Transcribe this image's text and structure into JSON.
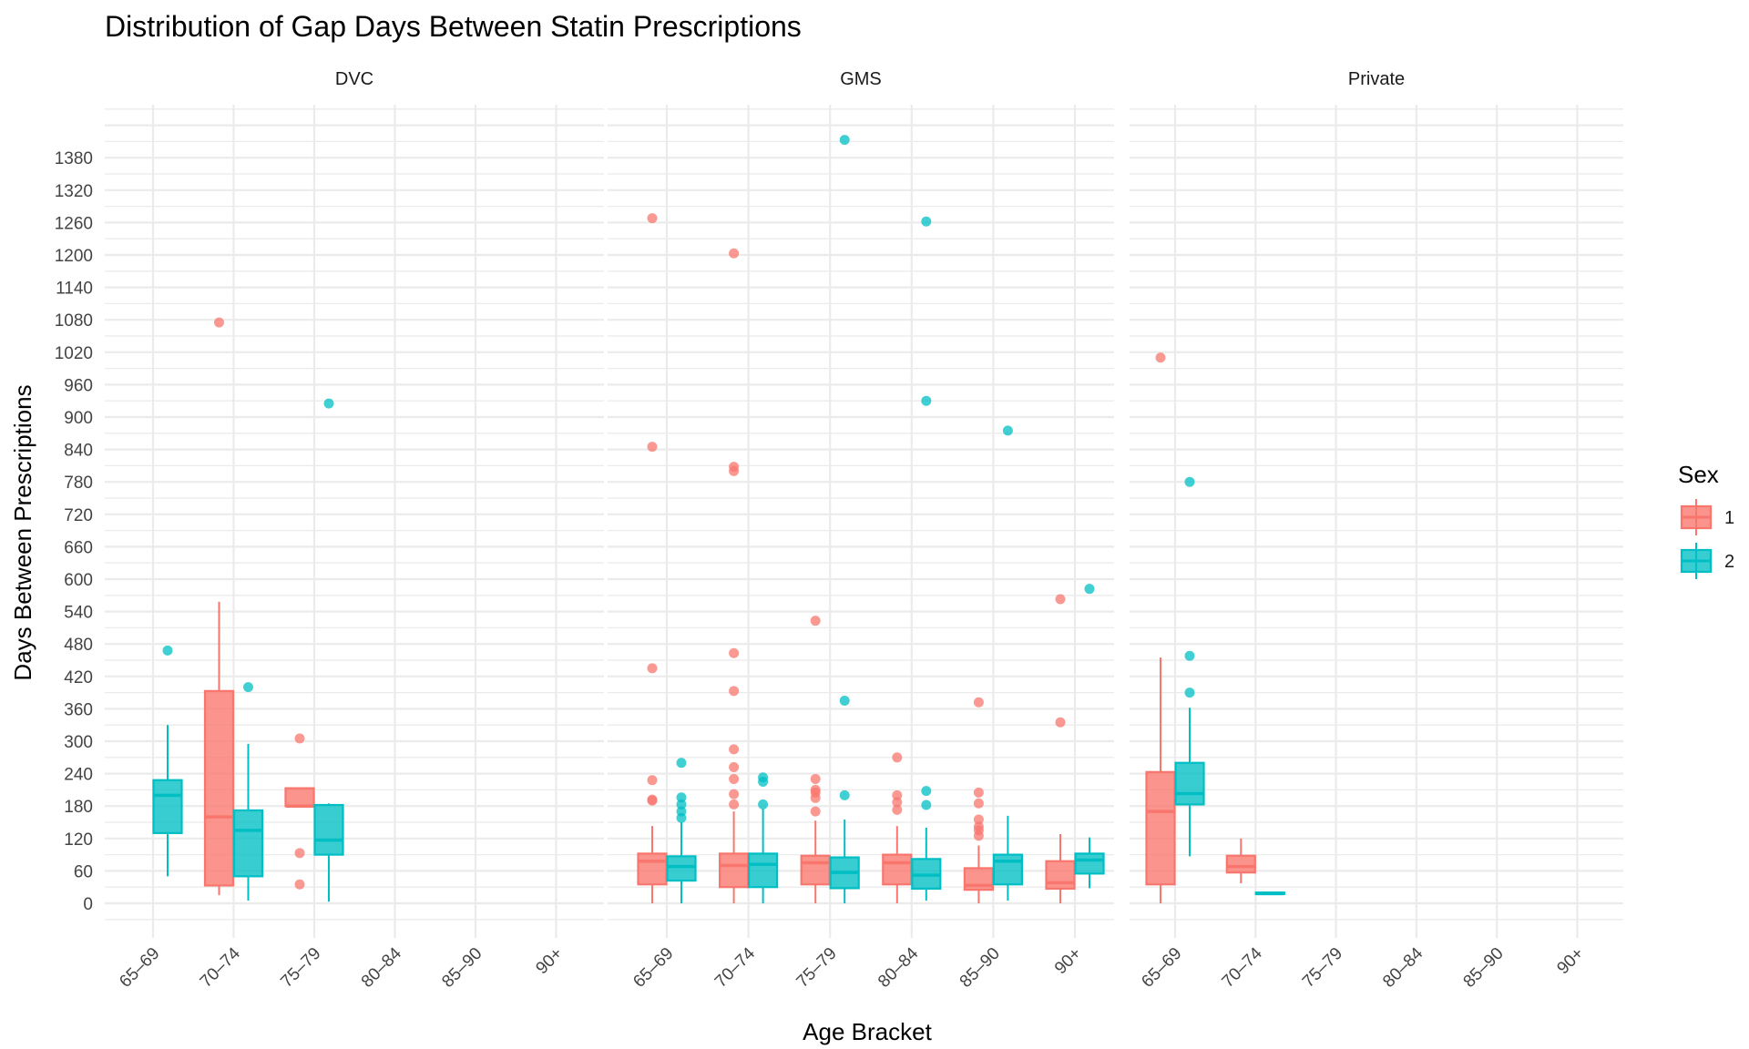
{
  "chart_data": {
    "type": "box",
    "title": "Distribution of Gap Days Between Statin Prescriptions",
    "xlabel": "Age Bracket",
    "ylabel": "Days Between Prescriptions",
    "ylim": [
      -60,
      1470
    ],
    "yticks": [
      0,
      60,
      120,
      180,
      240,
      300,
      360,
      420,
      480,
      540,
      600,
      660,
      720,
      780,
      840,
      900,
      960,
      1020,
      1080,
      1140,
      1200,
      1260,
      1320,
      1380
    ],
    "categories": [
      "65–69",
      "70–74",
      "75–79",
      "80–84",
      "85–90",
      "90+"
    ],
    "grid": true,
    "legend": {
      "title": "Sex",
      "position": "right",
      "entries": [
        {
          "label": "1",
          "color": "#F8766D"
        },
        {
          "label": "2",
          "color": "#00BFC4"
        }
      ]
    },
    "colors": {
      "1": "#F8766D",
      "2": "#00BFC4"
    },
    "facets": [
      {
        "name": "DVC",
        "boxes": [
          {
            "category": "65–69",
            "sex": "2",
            "min": 50,
            "q1": 130,
            "median": 200,
            "q3": 228,
            "max": 330,
            "outliers": [
              468
            ]
          },
          {
            "category": "70–74",
            "sex": "1",
            "min": 15,
            "q1": 33,
            "median": 160,
            "q3": 393,
            "max": 558,
            "outliers": [
              1075
            ]
          },
          {
            "category": "70–74",
            "sex": "2",
            "min": 5,
            "q1": 50,
            "median": 135,
            "q3": 172,
            "max": 295,
            "outliers": [
              400
            ]
          },
          {
            "category": "75–79",
            "sex": "1",
            "min": 180,
            "q1": 180,
            "median": 180,
            "q3": 213,
            "max": 213,
            "outliers": [
              305,
              93,
              35
            ]
          },
          {
            "category": "75–79",
            "sex": "2",
            "min": 3,
            "q1": 90,
            "median": 117,
            "q3": 182,
            "max": 185,
            "outliers": [
              925
            ]
          }
        ]
      },
      {
        "name": "GMS",
        "boxes": [
          {
            "category": "65–69",
            "sex": "1",
            "min": 0,
            "q1": 35,
            "median": 78,
            "q3": 92,
            "max": 143,
            "outliers": [
              1268,
              845,
              435,
              228,
              192,
              190
            ]
          },
          {
            "category": "65–69",
            "sex": "2",
            "min": 0,
            "q1": 42,
            "median": 68,
            "q3": 87,
            "max": 150,
            "outliers": [
              260,
              196,
              183,
              170,
              158
            ]
          },
          {
            "category": "70–74",
            "sex": "1",
            "min": 0,
            "q1": 30,
            "median": 70,
            "q3": 92,
            "max": 170,
            "outliers": [
              1203,
              808,
              800,
              463,
              393,
              285,
              252,
              230,
              202,
              183
            ]
          },
          {
            "category": "70–74",
            "sex": "2",
            "min": 0,
            "q1": 30,
            "median": 72,
            "q3": 92,
            "max": 175,
            "outliers": [
              233,
              225,
              183
            ]
          },
          {
            "category": "75–79",
            "sex": "1",
            "min": 0,
            "q1": 35,
            "median": 75,
            "q3": 88,
            "max": 153,
            "outliers": [
              523,
              230,
              210,
              205,
              195,
              170
            ]
          },
          {
            "category": "75–79",
            "sex": "2",
            "min": 0,
            "q1": 28,
            "median": 57,
            "q3": 85,
            "max": 155,
            "outliers": [
              1413,
              375,
              200
            ]
          },
          {
            "category": "80–84",
            "sex": "1",
            "min": 0,
            "q1": 35,
            "median": 75,
            "q3": 90,
            "max": 143,
            "outliers": [
              270,
              200,
              187,
              173
            ]
          },
          {
            "category": "80–84",
            "sex": "2",
            "min": 5,
            "q1": 27,
            "median": 52,
            "q3": 82,
            "max": 140,
            "outliers": [
              1262,
              930,
              208,
              182
            ]
          },
          {
            "category": "85–90",
            "sex": "1",
            "min": 0,
            "q1": 25,
            "median": 33,
            "q3": 65,
            "max": 107,
            "outliers": [
              372,
              205,
              185,
              155,
              142,
              135,
              125
            ]
          },
          {
            "category": "85–90",
            "sex": "2",
            "min": 5,
            "q1": 35,
            "median": 78,
            "q3": 90,
            "max": 162,
            "outliers": [
              875
            ]
          },
          {
            "category": "90+",
            "sex": "1",
            "min": 0,
            "q1": 27,
            "median": 38,
            "q3": 78,
            "max": 128,
            "outliers": [
              563,
              335
            ]
          },
          {
            "category": "90+",
            "sex": "2",
            "min": 28,
            "q1": 55,
            "median": 80,
            "q3": 92,
            "max": 122,
            "outliers": [
              582
            ]
          }
        ]
      },
      {
        "name": "Private",
        "boxes": [
          {
            "category": "65–69",
            "sex": "1",
            "min": 0,
            "q1": 35,
            "median": 170,
            "q3": 243,
            "max": 455,
            "outliers": [
              1010
            ]
          },
          {
            "category": "65–69",
            "sex": "2",
            "min": 87,
            "q1": 183,
            "median": 203,
            "q3": 260,
            "max": 362,
            "outliers": [
              780,
              458,
              390
            ]
          },
          {
            "category": "70–74",
            "sex": "1",
            "min": 37,
            "q1": 57,
            "median": 68,
            "q3": 88,
            "max": 120,
            "outliers": []
          },
          {
            "category": "70–74",
            "sex": "2",
            "min": 15,
            "q1": 17,
            "median": 18,
            "q3": 20,
            "max": 20,
            "outliers": []
          }
        ]
      }
    ]
  }
}
